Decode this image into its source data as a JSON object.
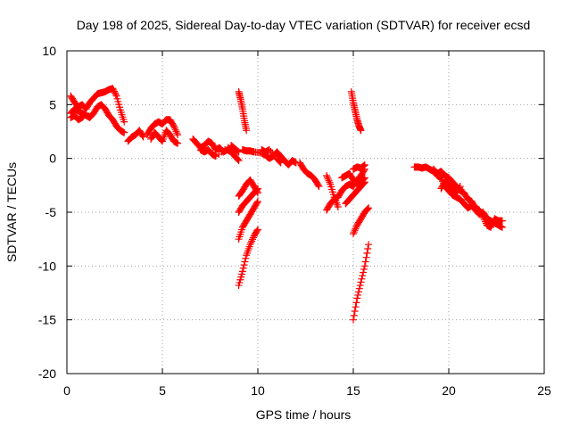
{
  "chart_data": {
    "type": "scatter",
    "title": "Day 198 of 2025, Sidereal Day-to-day VTEC variation (SDTVAR) for receiver ecsd",
    "xlabel": "GPS time / hours",
    "ylabel": "SDTVAR / TECUs",
    "xlim": [
      0,
      25
    ],
    "ylim": [
      -20,
      10
    ],
    "xticks": [
      0,
      5,
      10,
      15,
      20,
      25
    ],
    "yticks": [
      -20,
      -15,
      -10,
      -5,
      0,
      5,
      10
    ],
    "grid": true,
    "marker": "+",
    "color": "#ff0000",
    "series": [
      {
        "name": "SDTVAR",
        "tracks": [
          [
            [
              0.2,
              5.8
            ],
            [
              0.4,
              5.2
            ],
            [
              0.6,
              4.8
            ],
            [
              0.8,
              5.0
            ],
            [
              1.0,
              4.6
            ],
            [
              1.2,
              5.2
            ],
            [
              1.4,
              5.6
            ],
            [
              1.6,
              6.0
            ],
            [
              1.8,
              6.1
            ],
            [
              2.0,
              6.2
            ],
            [
              2.2,
              6.4
            ],
            [
              2.4,
              6.5
            ],
            [
              2.6,
              5.8
            ],
            [
              2.8,
              4.5
            ],
            [
              3.0,
              3.4
            ]
          ],
          [
            [
              0.2,
              4.2
            ],
            [
              0.4,
              4.6
            ],
            [
              0.6,
              4.4
            ],
            [
              0.8,
              4.2
            ],
            [
              1.0,
              4.0
            ],
            [
              1.2,
              3.8
            ],
            [
              1.4,
              4.2
            ],
            [
              1.6,
              4.8
            ],
            [
              1.8,
              5.0
            ],
            [
              2.0,
              4.6
            ],
            [
              2.2,
              4.0
            ],
            [
              2.4,
              3.6
            ],
            [
              2.6,
              3.0
            ],
            [
              2.8,
              2.6
            ],
            [
              3.0,
              2.4
            ]
          ],
          [
            [
              0.2,
              3.8
            ],
            [
              0.4,
              4.0
            ],
            [
              0.6,
              3.6
            ],
            [
              0.8,
              3.8
            ],
            [
              1.0,
              4.2
            ]
          ],
          [
            [
              3.2,
              1.6
            ],
            [
              3.4,
              2.0
            ],
            [
              3.6,
              2.2
            ],
            [
              3.8,
              2.6
            ],
            [
              4.0,
              2.0
            ]
          ],
          [
            [
              4.2,
              2.2
            ],
            [
              4.4,
              2.8
            ],
            [
              4.6,
              3.2
            ],
            [
              4.8,
              3.4
            ],
            [
              5.0,
              3.2
            ],
            [
              5.2,
              3.6
            ],
            [
              5.4,
              3.6
            ],
            [
              5.6,
              3.0
            ],
            [
              5.8,
              2.2
            ]
          ],
          [
            [
              4.4,
              1.8
            ],
            [
              4.6,
              2.4
            ],
            [
              4.8,
              2.0
            ],
            [
              5.0,
              1.6
            ],
            [
              5.2,
              2.6
            ],
            [
              5.4,
              2.2
            ],
            [
              5.6,
              1.6
            ],
            [
              5.8,
              1.4
            ]
          ],
          [
            [
              6.6,
              1.8
            ],
            [
              6.8,
              1.4
            ],
            [
              7.0,
              1.0
            ],
            [
              7.2,
              1.2
            ],
            [
              7.4,
              1.6
            ],
            [
              7.6,
              1.4
            ],
            [
              7.8,
              0.8
            ],
            [
              8.0,
              1.0
            ],
            [
              8.2,
              0.6
            ],
            [
              8.4,
              0.8
            ],
            [
              8.6,
              0.6
            ],
            [
              8.8,
              0.2
            ],
            [
              9.0,
              -0.2
            ]
          ],
          [
            [
              7.0,
              0.8
            ],
            [
              7.2,
              0.6
            ],
            [
              7.4,
              0.8
            ],
            [
              7.6,
              0.4
            ],
            [
              7.8,
              0.2
            ],
            [
              8.6,
              1.2
            ],
            [
              8.8,
              0.9
            ],
            [
              9.0,
              0.6
            ]
          ],
          [
            [
              9.2,
              0.8
            ],
            [
              9.4,
              0.7
            ],
            [
              9.6,
              0.7
            ],
            [
              9.8,
              0.6
            ],
            [
              10.2,
              0.5
            ],
            [
              10.4,
              0.3
            ],
            [
              10.6,
              0.0
            ],
            [
              10.8,
              0.2
            ],
            [
              11.0,
              0.6
            ],
            [
              11.2,
              0.2
            ],
            [
              11.4,
              -0.2
            ],
            [
              11.6,
              -0.6
            ],
            [
              11.8,
              -0.2
            ],
            [
              12.0,
              -0.4
            ]
          ],
          [
            [
              10.2,
              0.8
            ],
            [
              10.4,
              0.6
            ],
            [
              10.6,
              0.8
            ],
            [
              11.0,
              0.0
            ],
            [
              11.2,
              -0.4
            ]
          ],
          [
            [
              12.2,
              -0.4
            ],
            [
              12.4,
              -1.0
            ],
            [
              12.6,
              -1.4
            ],
            [
              12.8,
              -1.6
            ],
            [
              13.0,
              -2.0
            ],
            [
              13.2,
              -2.6
            ]
          ],
          [
            [
              9.0,
              6.2
            ],
            [
              9.1,
              5.5
            ],
            [
              9.2,
              4.6
            ],
            [
              9.3,
              3.5
            ],
            [
              9.4,
              2.6
            ]
          ],
          [
            [
              9.0,
              -3.5
            ],
            [
              9.2,
              -3.0
            ],
            [
              9.4,
              -2.4
            ],
            [
              9.6,
              -2.0
            ],
            [
              9.8,
              -2.6
            ],
            [
              10.0,
              -3.2
            ]
          ],
          [
            [
              9.0,
              -5.0
            ],
            [
              9.2,
              -4.4
            ],
            [
              9.4,
              -4.0
            ],
            [
              9.6,
              -3.6
            ],
            [
              9.8,
              -3.2
            ],
            [
              10.0,
              -2.8
            ]
          ],
          [
            [
              9.0,
              -7.5
            ],
            [
              9.2,
              -6.4
            ],
            [
              9.4,
              -5.8
            ],
            [
              9.6,
              -5.2
            ],
            [
              9.8,
              -4.6
            ],
            [
              10.0,
              -4.0
            ]
          ],
          [
            [
              9.0,
              -11.8
            ],
            [
              9.2,
              -10.5
            ],
            [
              9.4,
              -9.0
            ],
            [
              9.6,
              -8.0
            ],
            [
              9.8,
              -7.2
            ],
            [
              10.0,
              -6.6
            ]
          ],
          [
            [
              13.6,
              -1.6
            ],
            [
              13.8,
              -2.4
            ],
            [
              14.0,
              -3.6
            ],
            [
              14.2,
              -4.5
            ]
          ],
          [
            [
              13.6,
              -4.8
            ],
            [
              13.8,
              -4.2
            ],
            [
              14.0,
              -3.8
            ],
            [
              14.2,
              -3.6
            ],
            [
              14.4,
              -3.0
            ],
            [
              14.6,
              -2.6
            ],
            [
              14.8,
              -2.4
            ],
            [
              15.0,
              -2.6
            ],
            [
              15.2,
              -2.0
            ],
            [
              15.4,
              -1.6
            ],
            [
              15.6,
              -1.0
            ]
          ],
          [
            [
              14.4,
              -1.8
            ],
            [
              14.6,
              -1.6
            ],
            [
              14.8,
              -1.4
            ],
            [
              15.0,
              -2.0
            ],
            [
              15.2,
              -2.4
            ],
            [
              15.4,
              -2.2
            ],
            [
              15.6,
              -1.8
            ]
          ],
          [
            [
              14.6,
              -4.2
            ],
            [
              14.8,
              -3.8
            ],
            [
              15.0,
              -3.4
            ],
            [
              15.2,
              -3.0
            ],
            [
              15.4,
              -2.6
            ],
            [
              15.6,
              -2.2
            ]
          ],
          [
            [
              15.0,
              -1.0
            ],
            [
              15.2,
              -0.8
            ],
            [
              15.4,
              -0.9
            ],
            [
              15.6,
              -0.6
            ]
          ],
          [
            [
              14.9,
              6.2
            ],
            [
              15.0,
              5.2
            ],
            [
              15.1,
              4.4
            ],
            [
              15.2,
              3.6
            ],
            [
              15.3,
              3.0
            ],
            [
              15.4,
              2.6
            ]
          ],
          [
            [
              15.0,
              -7.0
            ],
            [
              15.2,
              -6.2
            ],
            [
              15.4,
              -5.6
            ],
            [
              15.6,
              -5.0
            ],
            [
              15.8,
              -4.6
            ]
          ],
          [
            [
              15.0,
              -15.0
            ],
            [
              15.2,
              -13.0
            ],
            [
              15.4,
              -11.5
            ],
            [
              15.6,
              -10.0
            ],
            [
              15.8,
              -8.0
            ]
          ],
          [
            [
              18.2,
              -0.8
            ],
            [
              18.4,
              -0.8
            ],
            [
              18.6,
              -0.9
            ],
            [
              18.8,
              -0.8
            ],
            [
              19.0,
              -1.0
            ],
            [
              19.2,
              -1.2
            ],
            [
              19.4,
              -1.6
            ],
            [
              19.6,
              -1.8
            ],
            [
              19.8,
              -2.6
            ],
            [
              20.0,
              -3.0
            ],
            [
              20.2,
              -3.4
            ],
            [
              20.4,
              -3.6
            ],
            [
              20.6,
              -3.8
            ],
            [
              20.8,
              -4.2
            ],
            [
              21.0,
              -4.6
            ],
            [
              21.2,
              -4.4
            ],
            [
              21.4,
              -4.8
            ],
            [
              21.6,
              -5.2
            ],
            [
              21.8,
              -5.0
            ],
            [
              22.0,
              -5.6
            ],
            [
              22.2,
              -5.8
            ],
            [
              22.4,
              -6.0
            ],
            [
              22.6,
              -6.2
            ],
            [
              22.8,
              -6.4
            ]
          ],
          [
            [
              19.2,
              -1.0
            ],
            [
              19.4,
              -1.4
            ],
            [
              19.6,
              -1.2
            ],
            [
              19.8,
              -1.6
            ],
            [
              20.0,
              -1.8
            ],
            [
              20.2,
              -2.2
            ],
            [
              20.4,
              -2.6
            ],
            [
              20.6,
              -3.0
            ],
            [
              20.8,
              -3.2
            ],
            [
              21.0,
              -3.8
            ],
            [
              21.2,
              -4.0
            ],
            [
              21.4,
              -4.6
            ],
            [
              21.6,
              -4.8
            ],
            [
              21.8,
              -5.4
            ],
            [
              22.0,
              -6.2
            ],
            [
              22.2,
              -6.4
            ],
            [
              22.4,
              -5.6
            ],
            [
              22.6,
              -5.8
            ],
            [
              22.8,
              -5.8
            ]
          ],
          [
            [
              19.6,
              -2.8
            ],
            [
              19.8,
              -2.2
            ],
            [
              20.0,
              -2.4
            ],
            [
              20.2,
              -2.8
            ],
            [
              20.4,
              -3.2
            ],
            [
              20.6,
              -2.6
            ]
          ]
        ]
      }
    ]
  }
}
